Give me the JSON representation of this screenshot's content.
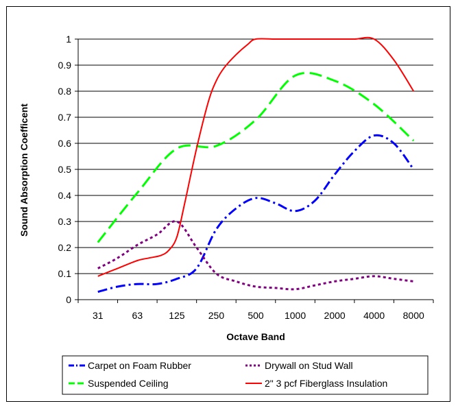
{
  "chart_data": {
    "type": "line",
    "title": "",
    "xlabel": "Octave Band",
    "ylabel": "Sound Absorption Coefficent",
    "categories": [
      "31",
      "63",
      "125",
      "250",
      "500",
      "1000",
      "2000",
      "4000",
      "8000"
    ],
    "ylim": [
      0,
      1
    ],
    "yticks": [
      "0",
      "0.1",
      "0.2",
      "0.3",
      "0.4",
      "0.5",
      "0.6",
      "0.7",
      "0.8",
      "0.9",
      "1"
    ],
    "grid": "horizontal",
    "legend_placement": "bottom",
    "series": [
      {
        "name": "Carpet on Foam Rubber",
        "color": "#0000ff",
        "dash": "dash-dot",
        "x": [
          0,
          0.5,
          1,
          1.5,
          2,
          2.5,
          3,
          3.5,
          4,
          4.5,
          5,
          5.5,
          6,
          6.5,
          7,
          7.5,
          8
        ],
        "values": [
          0.03,
          0.05,
          0.06,
          0.06,
          0.08,
          0.12,
          0.27,
          0.35,
          0.39,
          0.37,
          0.34,
          0.38,
          0.48,
          0.57,
          0.63,
          0.6,
          0.5
        ]
      },
      {
        "name": "Drywall on Stud Wall",
        "color": "#800080",
        "dash": "dotted",
        "x": [
          0,
          0.5,
          1,
          1.5,
          2,
          2.5,
          3,
          3.5,
          4,
          4.5,
          5,
          5.5,
          6,
          6.5,
          7,
          7.5,
          8
        ],
        "values": [
          0.12,
          0.16,
          0.21,
          0.25,
          0.3,
          0.2,
          0.1,
          0.07,
          0.05,
          0.045,
          0.04,
          0.055,
          0.07,
          0.08,
          0.09,
          0.08,
          0.07
        ]
      },
      {
        "name": "Suspended Ceiling",
        "color": "#00ff00",
        "dash": "long-dash",
        "x": [
          0,
          1,
          2,
          3,
          4,
          5,
          6,
          7,
          8
        ],
        "values": [
          0.22,
          0.41,
          0.58,
          0.59,
          0.69,
          0.86,
          0.84,
          0.75,
          0.61
        ]
      },
      {
        "name": "2\" 3 pcf Fiberglass Insulation",
        "color": "#ff0000",
        "dash": "solid",
        "x": [
          0,
          0.5,
          1,
          1.3,
          1.6,
          1.8,
          2,
          2.2,
          2.5,
          2.8,
          3,
          3.2,
          3.5,
          3.8,
          4,
          4.5,
          5,
          5.5,
          6,
          6.5,
          7,
          7.5,
          8
        ],
        "values": [
          0.09,
          0.12,
          0.15,
          0.16,
          0.17,
          0.19,
          0.24,
          0.37,
          0.58,
          0.76,
          0.84,
          0.89,
          0.94,
          0.98,
          1.0,
          1.0,
          1.0,
          1.0,
          1.0,
          1.0,
          1.0,
          0.92,
          0.8
        ]
      }
    ]
  }
}
